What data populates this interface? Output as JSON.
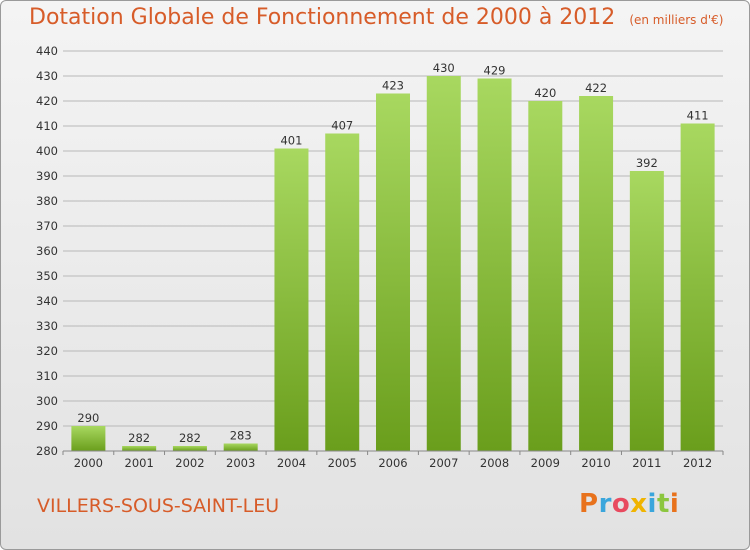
{
  "header": {
    "title": "Dotation Globale de Fonctionnement de 2000 à 2012",
    "unit": "(en milliers d'€)"
  },
  "footer": {
    "place": "VILLERS-SOUS-SAINT-LEU",
    "brand": [
      "P",
      "r",
      "o",
      "x",
      "i",
      "t",
      "i"
    ],
    "brand_colors": [
      "#e8721c",
      "#3aa6dc",
      "#e84a5f",
      "#f0b400",
      "#3aa6dc",
      "#8cc63f",
      "#e8721c"
    ]
  },
  "colors": {
    "bar_light": "#a8d860",
    "bar_dark": "#6a9e1c",
    "grid": "#b8b8b8",
    "title": "#d75c29"
  },
  "chart_data": {
    "type": "bar",
    "title": "Dotation Globale de Fonctionnement de 2000 à 2012",
    "subtitle": "(en milliers d'€)",
    "xlabel": "",
    "ylabel": "",
    "categories": [
      "2000",
      "2001",
      "2002",
      "2003",
      "2004",
      "2005",
      "2006",
      "2007",
      "2008",
      "2009",
      "2010",
      "2011",
      "2012"
    ],
    "values": [
      290,
      282,
      282,
      283,
      401,
      407,
      423,
      430,
      429,
      420,
      422,
      392,
      411
    ],
    "ylim": [
      280,
      440
    ],
    "yticks": [
      280,
      290,
      300,
      310,
      320,
      330,
      340,
      350,
      360,
      370,
      380,
      390,
      400,
      410,
      420,
      430,
      440
    ],
    "grid": true,
    "legend": "none"
  }
}
